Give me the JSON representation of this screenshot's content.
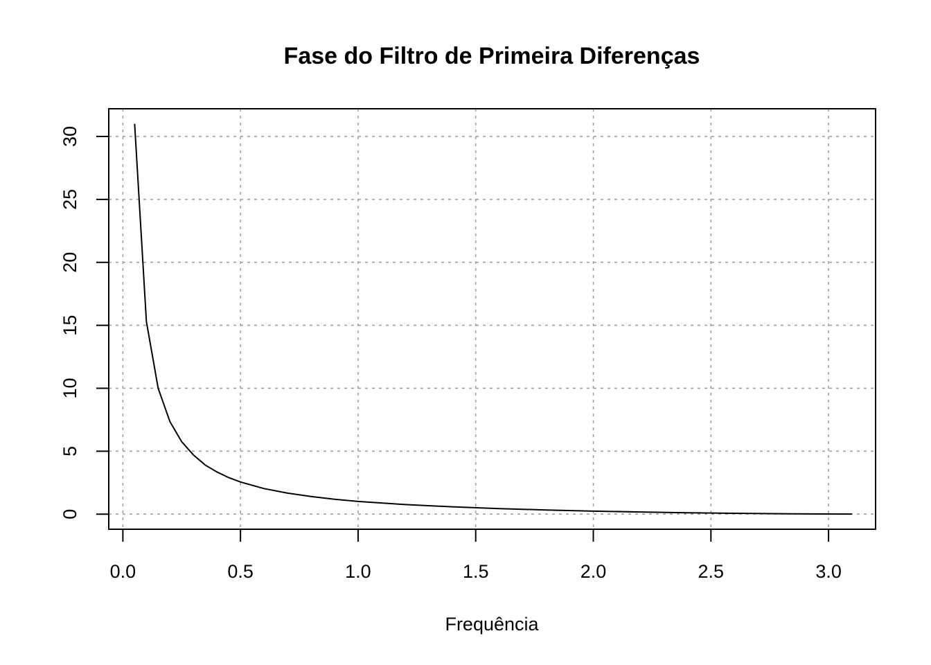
{
  "chart_data": {
    "type": "line",
    "title": "Fase do Filtro de Primeira Diferenças",
    "xlabel": "Frequência",
    "ylabel": "",
    "xlim": [
      -0.06,
      3.2
    ],
    "ylim": [
      -1.2,
      32.2
    ],
    "xticks": [
      0.0,
      0.5,
      1.0,
      1.5,
      2.0,
      2.5,
      3.0
    ],
    "xtick_labels": [
      "0.0",
      "0.5",
      "1.0",
      "1.5",
      "2.0",
      "2.5",
      "3.0"
    ],
    "yticks": [
      0,
      5,
      10,
      15,
      20,
      25,
      30
    ],
    "ytick_labels": [
      "0",
      "5",
      "10",
      "15",
      "20",
      "25",
      "30"
    ],
    "grid": true,
    "series": [
      {
        "color": "#000000",
        "x": [
          0.05,
          0.1,
          0.15,
          0.2,
          0.25,
          0.3,
          0.35,
          0.4,
          0.45,
          0.5,
          0.6,
          0.7,
          0.8,
          0.9,
          1.0,
          1.2,
          1.4,
          1.6,
          1.8,
          2.0,
          2.2,
          2.4,
          2.6,
          2.8,
          3.0,
          3.1
        ],
        "y": [
          31.0,
          15.3,
          10.0,
          7.35,
          5.75,
          4.7,
          3.9,
          3.35,
          2.9,
          2.55,
          2.03,
          1.67,
          1.4,
          1.18,
          1.01,
          0.76,
          0.58,
          0.44,
          0.33,
          0.24,
          0.17,
          0.11,
          0.065,
          0.03,
          0.008,
          0.002
        ]
      }
    ]
  }
}
